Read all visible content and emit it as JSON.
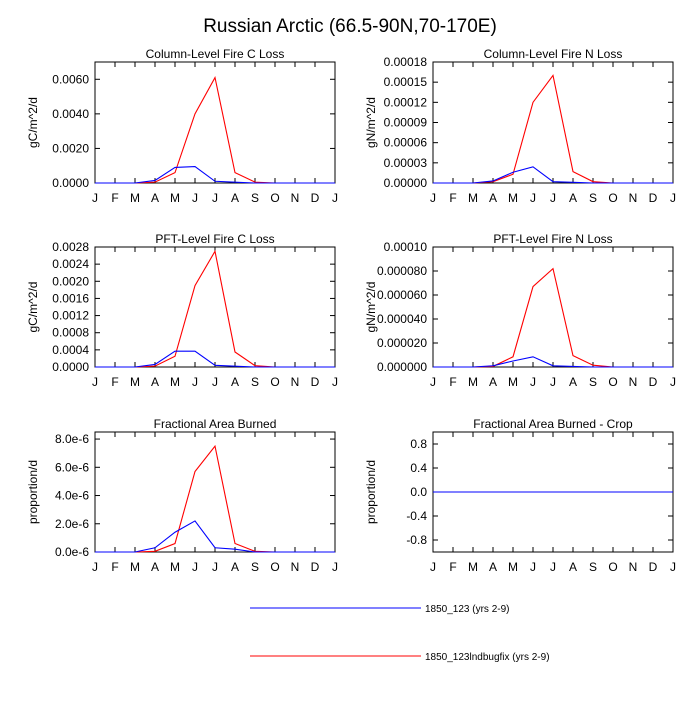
{
  "title": "Russian Arctic (66.5-90N,70-170E)",
  "months": [
    "J",
    "F",
    "M",
    "A",
    "M",
    "J",
    "J",
    "A",
    "S",
    "O",
    "N",
    "D",
    "J"
  ],
  "colors": {
    "series1": "#0000ff",
    "series2": "#ff0000",
    "axis": "#000000"
  },
  "legend": [
    {
      "label": "1850_123 (yrs 2-9)",
      "color": "#0000ff"
    },
    {
      "label": "1850_123lndbugfix (yrs 2-9)",
      "color": "#ff0000"
    }
  ],
  "chart_data": [
    {
      "type": "line",
      "title": "Column-Level Fire C Loss",
      "ylabel": "gC/m^2/d",
      "ylim": [
        0,
        0.007
      ],
      "yticks": [
        "0.0000",
        "0.0020",
        "0.0040",
        "0.0060"
      ],
      "ytick_values": [
        0,
        0.002,
        0.004,
        0.006
      ],
      "x": [
        1,
        2,
        3,
        4,
        5,
        6,
        7,
        8,
        9,
        10,
        11,
        12,
        13
      ],
      "series": [
        {
          "name": "1850_123 (yrs 2-9)",
          "values": [
            0,
            0,
            0,
            0.00015,
            0.0009,
            0.00095,
            0.0001,
            5e-05,
            0,
            0,
            0,
            0,
            0
          ]
        },
        {
          "name": "1850_123lndbugfix (yrs 2-9)",
          "values": [
            0,
            0,
            0,
            5e-05,
            0.0006,
            0.004,
            0.0061,
            0.0006,
            5e-05,
            0,
            0,
            0,
            0
          ]
        }
      ]
    },
    {
      "type": "line",
      "title": "Column-Level Fire N Loss",
      "ylabel": "gN/m^2/d",
      "ylim": [
        0,
        0.00018
      ],
      "yticks": [
        "0.00000",
        "0.00003",
        "0.00006",
        "0.00009",
        "0.00012",
        "0.00015",
        "0.00018"
      ],
      "ytick_values": [
        0,
        3e-05,
        6e-05,
        9e-05,
        0.00012,
        0.00015,
        0.00018
      ],
      "x": [
        1,
        2,
        3,
        4,
        5,
        6,
        7,
        8,
        9,
        10,
        11,
        12,
        13
      ],
      "series": [
        {
          "name": "1850_123 (yrs 2-9)",
          "values": [
            0,
            0,
            0,
            3e-06,
            1.6e-05,
            2.4e-05,
            2e-06,
            1e-06,
            0,
            0,
            0,
            0,
            0
          ]
        },
        {
          "name": "1850_123lndbugfix (yrs 2-9)",
          "values": [
            0,
            0,
            0,
            2e-06,
            1.3e-05,
            0.00012,
            0.00016,
            1.7e-05,
            2e-06,
            0,
            0,
            0,
            0
          ]
        }
      ]
    },
    {
      "type": "line",
      "title": "PFT-Level Fire C Loss",
      "ylabel": "gC/m^2/d",
      "ylim": [
        0,
        0.0028
      ],
      "yticks": [
        "0.0000",
        "0.0004",
        "0.0008",
        "0.0012",
        "0.0016",
        "0.0020",
        "0.0024",
        "0.0028"
      ],
      "ytick_values": [
        0,
        0.0004,
        0.0008,
        0.0012,
        0.0016,
        0.002,
        0.0024,
        0.0028
      ],
      "x": [
        1,
        2,
        3,
        4,
        5,
        6,
        7,
        8,
        9,
        10,
        11,
        12,
        13
      ],
      "series": [
        {
          "name": "1850_123 (yrs 2-9)",
          "values": [
            0,
            0,
            0,
            6e-05,
            0.00037,
            0.00037,
            4e-05,
            2e-05,
            0,
            0,
            0,
            0,
            0
          ]
        },
        {
          "name": "1850_123lndbugfix (yrs 2-9)",
          "values": [
            0,
            0,
            0,
            2e-05,
            0.00025,
            0.0019,
            0.0027,
            0.00035,
            3e-05,
            0,
            0,
            0,
            0
          ]
        }
      ]
    },
    {
      "type": "line",
      "title": "PFT-Level Fire N Loss",
      "ylabel": "gN/m^2/d",
      "ylim": [
        0,
        0.0001
      ],
      "yticks": [
        "0.000000",
        "0.000020",
        "0.000040",
        "0.000060",
        "0.000080",
        "0.00010"
      ],
      "ytick_values": [
        0,
        2e-05,
        4e-05,
        6e-05,
        8e-05,
        0.0001
      ],
      "x": [
        1,
        2,
        3,
        4,
        5,
        6,
        7,
        8,
        9,
        10,
        11,
        12,
        13
      ],
      "series": [
        {
          "name": "1850_123 (yrs 2-9)",
          "values": [
            0,
            0,
            0,
            1e-06,
            5e-06,
            8.5e-06,
            1e-06,
            5e-07,
            0,
            0,
            0,
            0,
            0
          ]
        },
        {
          "name": "1850_123lndbugfix (yrs 2-9)",
          "values": [
            0,
            0,
            0,
            5e-07,
            8.5e-06,
            6.7e-05,
            8.2e-05,
            9.5e-06,
            1.5e-06,
            0,
            0,
            0,
            0
          ]
        }
      ]
    },
    {
      "type": "line",
      "title": "Fractional Area Burned",
      "ylabel": "proportion/d",
      "ylim": [
        0,
        8.5e-06
      ],
      "yticks": [
        "0.0e-6",
        "2.0e-6",
        "4.0e-6",
        "6.0e-6",
        "8.0e-6"
      ],
      "ytick_values": [
        0,
        2e-06,
        4e-06,
        6e-06,
        8e-06
      ],
      "x": [
        1,
        2,
        3,
        4,
        5,
        6,
        7,
        8,
        9,
        10,
        11,
        12,
        13
      ],
      "series": [
        {
          "name": "1850_123 (yrs 2-9)",
          "values": [
            0,
            0,
            0,
            3e-07,
            1.4e-06,
            2.2e-06,
            3e-07,
            2e-07,
            0,
            0,
            0,
            0,
            0
          ]
        },
        {
          "name": "1850_123lndbugfix (yrs 2-9)",
          "values": [
            0,
            0,
            0,
            5e-08,
            6e-07,
            5.7e-06,
            7.5e-06,
            6e-07,
            5e-08,
            0,
            0,
            0,
            0
          ]
        }
      ]
    },
    {
      "type": "line",
      "title": "Fractional Area Burned - Crop",
      "ylabel": "proportion/d",
      "ylim": [
        -1.0,
        1.0
      ],
      "yticks": [
        "-0.8",
        "-0.4",
        "0.0",
        "0.4",
        "0.8"
      ],
      "ytick_values": [
        -0.8,
        -0.4,
        0,
        0.4,
        0.8
      ],
      "x": [
        1,
        2,
        3,
        4,
        5,
        6,
        7,
        8,
        9,
        10,
        11,
        12,
        13
      ],
      "series": [
        {
          "name": "1850_123 (yrs 2-9)",
          "values": [
            0,
            0,
            0,
            0,
            0,
            0,
            0,
            0,
            0,
            0,
            0,
            0,
            0
          ]
        },
        {
          "name": "1850_123lndbugfix (yrs 2-9)",
          "values": [
            0,
            0,
            0,
            0,
            0,
            0,
            0,
            0,
            0,
            0,
            0,
            0,
            0
          ]
        }
      ]
    }
  ]
}
